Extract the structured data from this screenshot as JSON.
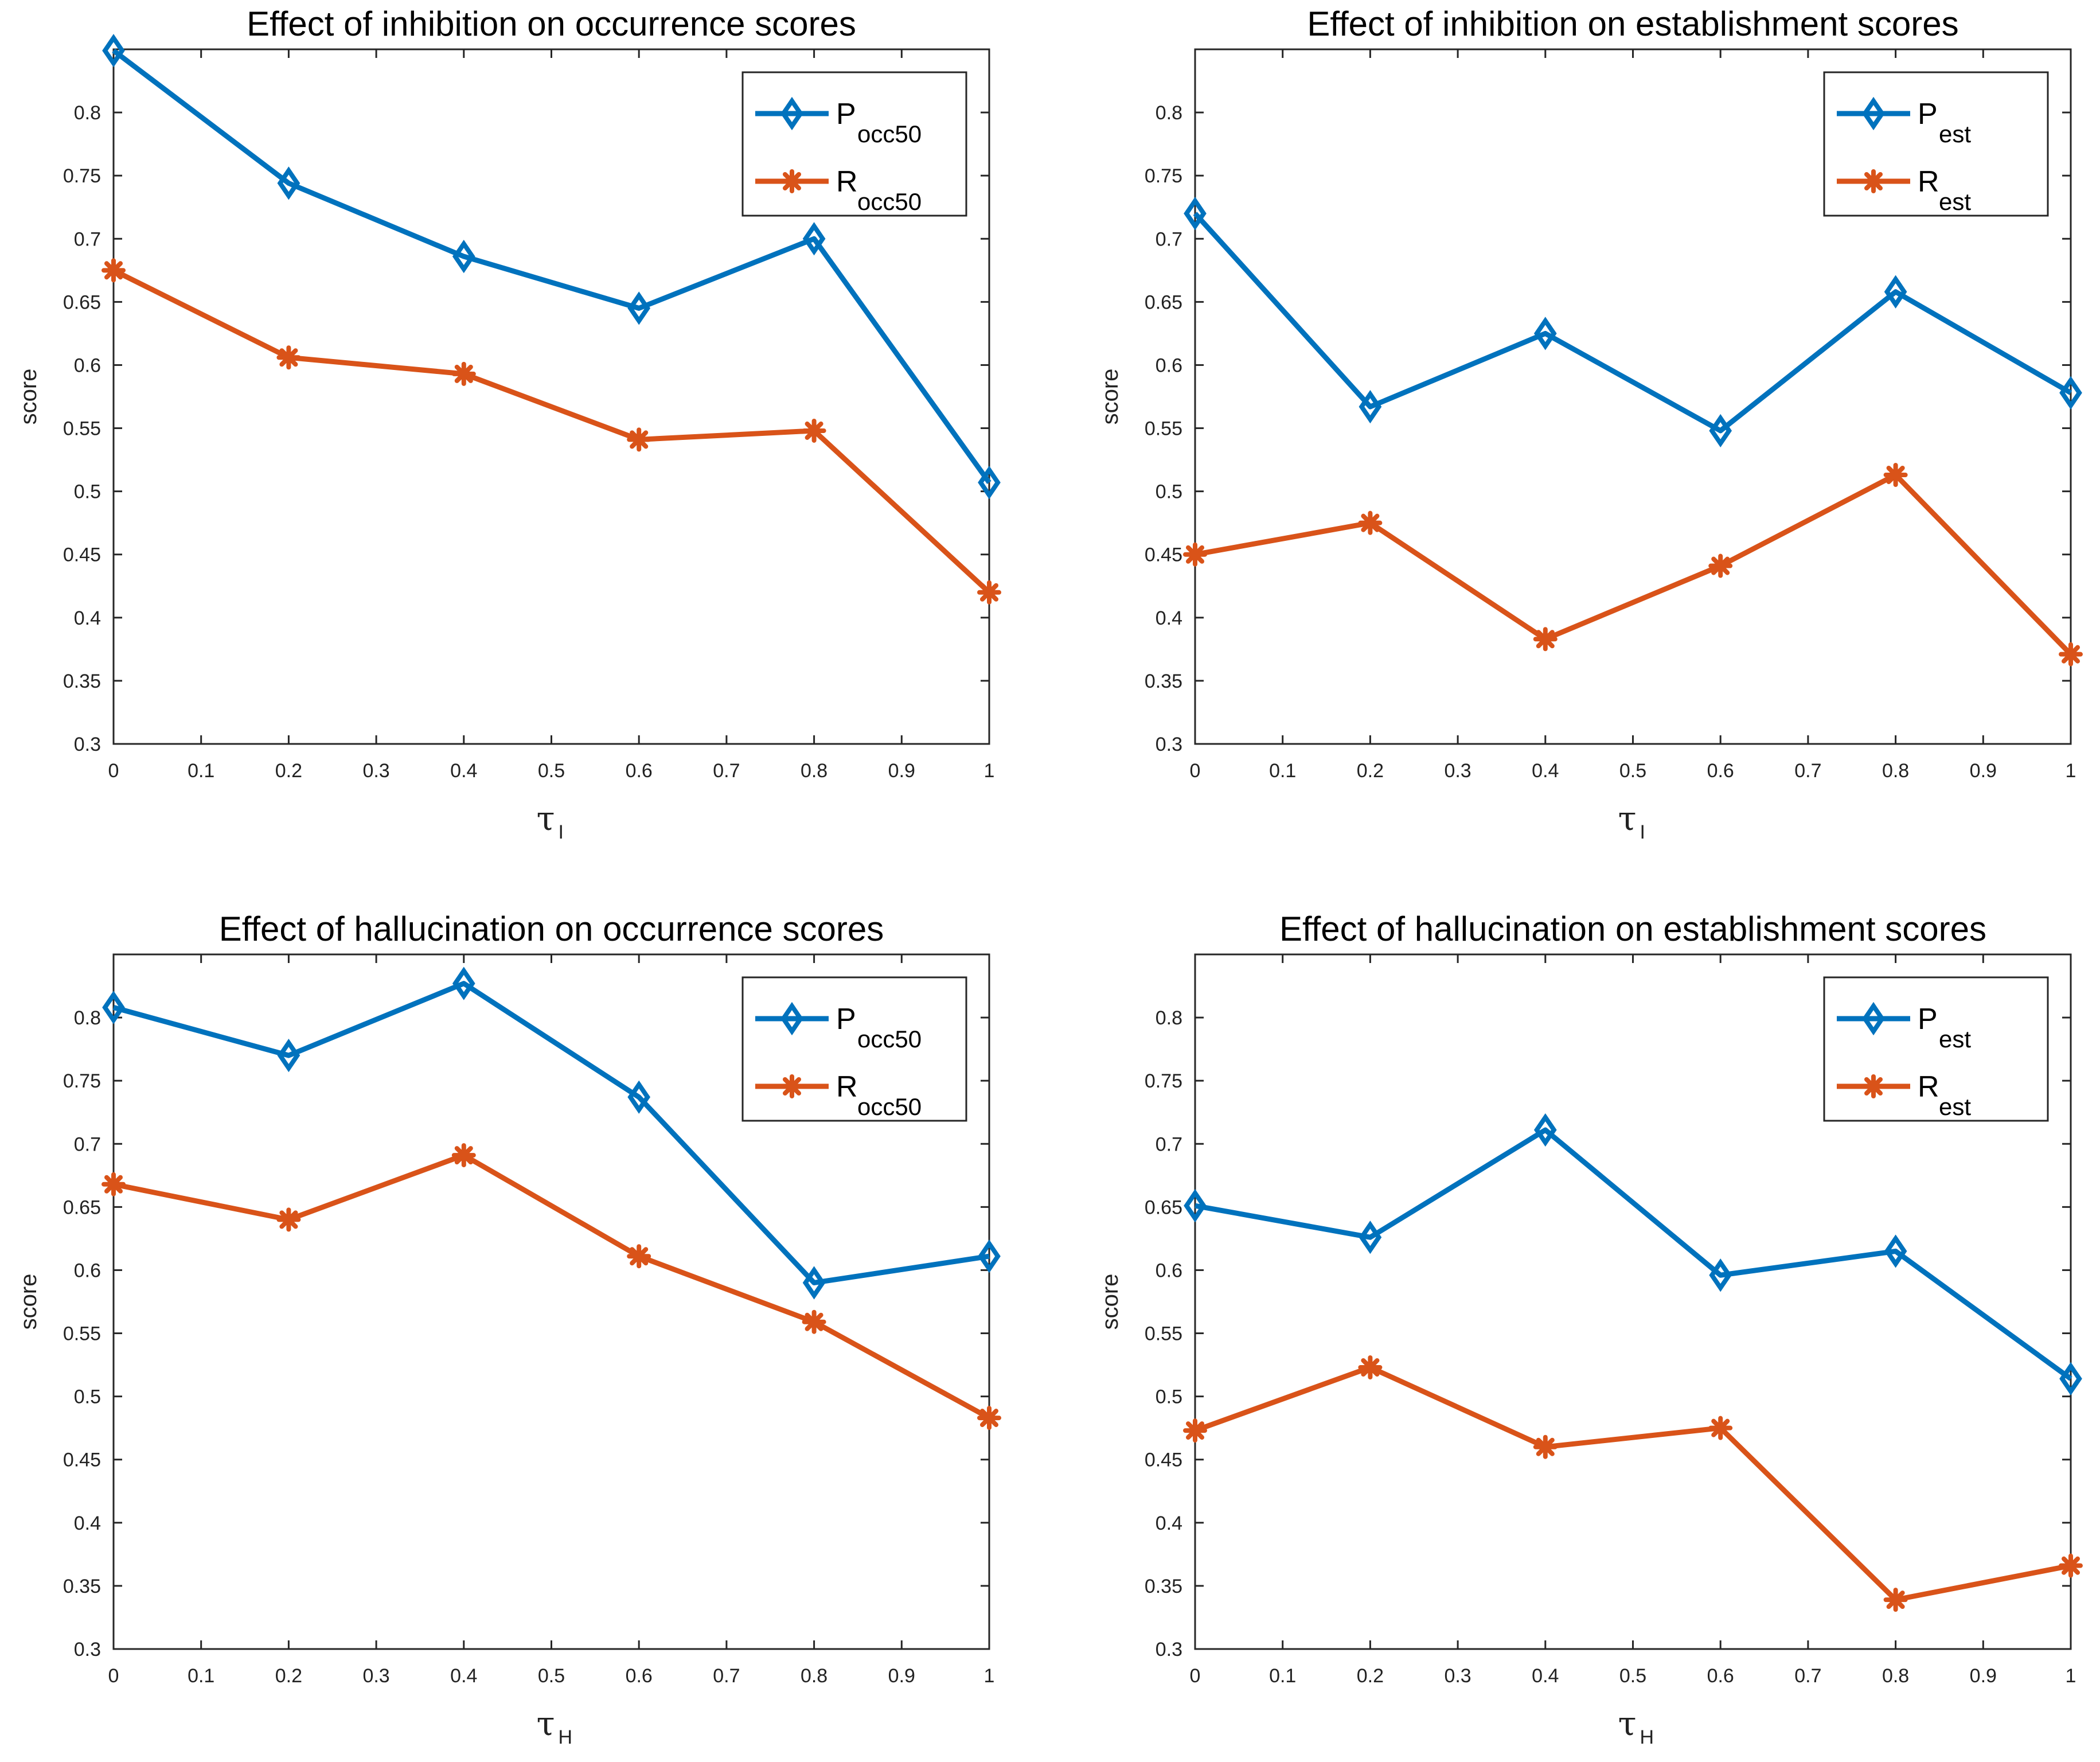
{
  "colors": {
    "p_series": "#0072BD",
    "r_series": "#D95319",
    "axis": "#262626"
  },
  "chart_data": [
    {
      "type": "line",
      "title": "Effect of inhibition on occurrence scores",
      "xlabel": "τ",
      "xlabel_sub": "I",
      "ylabel": "score",
      "xlim": [
        0,
        1
      ],
      "ylim": [
        0.3,
        0.85
      ],
      "xticks": [
        0,
        0.1,
        0.2,
        0.3,
        0.4,
        0.5,
        0.6,
        0.7,
        0.8,
        0.9,
        1
      ],
      "xtick_labels": [
        "0",
        "0.1",
        "0.2",
        "0.3",
        "0.4",
        "0.5",
        "0.6",
        "0.7",
        "0.8",
        "0.9",
        "1"
      ],
      "yticks": [
        0.3,
        0.35,
        0.4,
        0.45,
        0.5,
        0.55,
        0.6,
        0.65,
        0.7,
        0.75,
        0.8
      ],
      "ytick_labels": [
        "0.3",
        "0.35",
        "0.4",
        "0.45",
        "0.5",
        "0.55",
        "0.6",
        "0.65",
        "0.7",
        "0.75",
        "0.8"
      ],
      "legend_position": "top-right",
      "x": [
        0,
        0.2,
        0.4,
        0.6,
        0.8,
        1
      ],
      "series": [
        {
          "name": "P",
          "subscript": "occ50",
          "marker": "diamond",
          "values": [
            0.849,
            0.744,
            0.686,
            0.645,
            0.7,
            0.507
          ]
        },
        {
          "name": "R",
          "subscript": "occ50",
          "marker": "asterisk",
          "values": [
            0.675,
            0.606,
            0.593,
            0.541,
            0.548,
            0.42
          ]
        }
      ]
    },
    {
      "type": "line",
      "title": "Effect of inhibition on establishment scores",
      "xlabel": "τ",
      "xlabel_sub": "I",
      "ylabel": "score",
      "xlim": [
        0,
        1
      ],
      "ylim": [
        0.3,
        0.85
      ],
      "xticks": [
        0,
        0.1,
        0.2,
        0.3,
        0.4,
        0.5,
        0.6,
        0.7,
        0.8,
        0.9,
        1
      ],
      "xtick_labels": [
        "0",
        "0.1",
        "0.2",
        "0.3",
        "0.4",
        "0.5",
        "0.6",
        "0.7",
        "0.8",
        "0.9",
        "1"
      ],
      "yticks": [
        0.3,
        0.35,
        0.4,
        0.45,
        0.5,
        0.55,
        0.6,
        0.65,
        0.7,
        0.75,
        0.8
      ],
      "ytick_labels": [
        "0.3",
        "0.35",
        "0.4",
        "0.45",
        "0.5",
        "0.55",
        "0.6",
        "0.65",
        "0.7",
        "0.75",
        "0.8"
      ],
      "legend_position": "top-right",
      "x": [
        0,
        0.2,
        0.4,
        0.6,
        0.8,
        1
      ],
      "series": [
        {
          "name": "P",
          "subscript": "est",
          "marker": "diamond",
          "values": [
            0.72,
            0.567,
            0.625,
            0.548,
            0.658,
            0.578
          ]
        },
        {
          "name": "R",
          "subscript": "est",
          "marker": "asterisk",
          "values": [
            0.45,
            0.475,
            0.383,
            0.441,
            0.513,
            0.371
          ]
        }
      ]
    },
    {
      "type": "line",
      "title": "Effect of hallucination on occurrence scores",
      "xlabel": "τ",
      "xlabel_sub": "H",
      "ylabel": "score",
      "xlim": [
        0,
        1
      ],
      "ylim": [
        0.3,
        0.85
      ],
      "xticks": [
        0,
        0.1,
        0.2,
        0.3,
        0.4,
        0.5,
        0.6,
        0.7,
        0.8,
        0.9,
        1
      ],
      "xtick_labels": [
        "0",
        "0.1",
        "0.2",
        "0.3",
        "0.4",
        "0.5",
        "0.6",
        "0.7",
        "0.8",
        "0.9",
        "1"
      ],
      "yticks": [
        0.3,
        0.35,
        0.4,
        0.45,
        0.5,
        0.55,
        0.6,
        0.65,
        0.7,
        0.75,
        0.8
      ],
      "ytick_labels": [
        "0.3",
        "0.35",
        "0.4",
        "0.45",
        "0.5",
        "0.55",
        "0.6",
        "0.65",
        "0.7",
        "0.75",
        "0.8"
      ],
      "legend_position": "top-right",
      "x": [
        0,
        0.2,
        0.4,
        0.6,
        0.8,
        1
      ],
      "series": [
        {
          "name": "P",
          "subscript": "occ50",
          "marker": "diamond",
          "values": [
            0.808,
            0.77,
            0.827,
            0.737,
            0.59,
            0.611
          ]
        },
        {
          "name": "R",
          "subscript": "occ50",
          "marker": "asterisk",
          "values": [
            0.668,
            0.64,
            0.691,
            0.611,
            0.559,
            0.483
          ]
        }
      ]
    },
    {
      "type": "line",
      "title": "Effect of hallucination on establishment scores",
      "xlabel": "τ",
      "xlabel_sub": "H",
      "ylabel": "score",
      "xlim": [
        0,
        1
      ],
      "ylim": [
        0.3,
        0.85
      ],
      "xticks": [
        0,
        0.1,
        0.2,
        0.3,
        0.4,
        0.5,
        0.6,
        0.7,
        0.8,
        0.9,
        1
      ],
      "xtick_labels": [
        "0",
        "0.1",
        "0.2",
        "0.3",
        "0.4",
        "0.5",
        "0.6",
        "0.7",
        "0.8",
        "0.9",
        "1"
      ],
      "yticks": [
        0.3,
        0.35,
        0.4,
        0.45,
        0.5,
        0.55,
        0.6,
        0.65,
        0.7,
        0.75,
        0.8
      ],
      "ytick_labels": [
        "0.3",
        "0.35",
        "0.4",
        "0.45",
        "0.5",
        "0.55",
        "0.6",
        "0.65",
        "0.7",
        "0.75",
        "0.8"
      ],
      "legend_position": "top-right",
      "x": [
        0,
        0.2,
        0.4,
        0.6,
        0.8,
        1
      ],
      "series": [
        {
          "name": "P",
          "subscript": "est",
          "marker": "diamond",
          "values": [
            0.651,
            0.626,
            0.711,
            0.596,
            0.615,
            0.514
          ]
        },
        {
          "name": "R",
          "subscript": "est",
          "marker": "asterisk",
          "values": [
            0.473,
            0.523,
            0.46,
            0.475,
            0.339,
            0.366
          ]
        }
      ]
    }
  ]
}
